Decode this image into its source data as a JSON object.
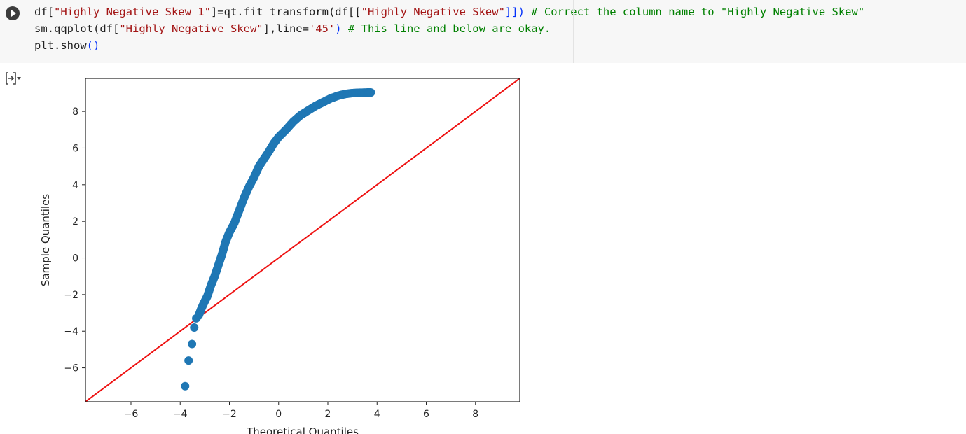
{
  "code_cell": {
    "lines": [
      [
        {
          "t": "df[",
          "k": "p"
        },
        {
          "t": "\"Highly Negative Skew_1\"",
          "k": "s"
        },
        {
          "t": "]=qt.fit_transform(df[[",
          "k": "p"
        },
        {
          "t": "\"Highly Negative Skew\"",
          "k": "s"
        },
        {
          "t": "]]) ",
          "k": "b"
        },
        {
          "t": "# Correct the column name to \"Highly Negative Skew\"",
          "k": "c"
        }
      ],
      [
        {
          "t": "sm.qqplot(df[",
          "k": "p"
        },
        {
          "t": "\"Highly Negative Skew\"",
          "k": "s"
        },
        {
          "t": "],line=",
          "k": "p"
        },
        {
          "t": "'45'",
          "k": "s"
        },
        {
          "t": ") ",
          "k": "b"
        },
        {
          "t": "# This line and below are okay.",
          "k": "c"
        }
      ],
      [
        {
          "t": "plt.show",
          "k": "p"
        },
        {
          "t": "()",
          "k": "b"
        }
      ]
    ]
  },
  "icons": {
    "run": "play-icon",
    "output_toggle": "collapse-output-icon"
  },
  "colors": {
    "points": "#1f77b4",
    "reference_line": "#ee1111",
    "code_string": "#a31515",
    "code_comment": "#008000",
    "code_paren": "#0431fa"
  },
  "chart_data": {
    "type": "scatter",
    "xlabel": "Theoretical Quantiles",
    "ylabel": "Sample Quantiles",
    "xlim": [
      -7.85,
      9.8
    ],
    "ylim": [
      -7.85,
      9.8
    ],
    "xticks": [
      -6,
      -4,
      -2,
      0,
      2,
      4,
      6,
      8
    ],
    "yticks": [
      -6,
      -4,
      -2,
      0,
      2,
      4,
      6,
      8
    ],
    "xtick_labels": [
      "−6",
      "−4",
      "−2",
      "0",
      "2",
      "4",
      "6",
      "8"
    ],
    "ytick_labels": [
      "−6",
      "−4",
      "−2",
      "0",
      "2",
      "4",
      "6",
      "8"
    ],
    "grid": false,
    "reference_line": {
      "type": "45-degree",
      "points": [
        [
          -7.85,
          -7.85
        ],
        [
          9.8,
          9.8
        ]
      ]
    },
    "series": [
      {
        "points": [
          [
            -3.8,
            -7.0
          ],
          [
            -3.66,
            -5.6
          ],
          [
            -3.52,
            -4.7
          ],
          [
            -3.43,
            -3.8
          ],
          [
            -3.35,
            -3.3
          ],
          [
            -3.25,
            -3.15
          ],
          [
            -3.15,
            -2.8
          ],
          [
            -3.05,
            -2.5
          ],
          [
            -2.9,
            -2.1
          ],
          [
            -2.75,
            -1.5
          ],
          [
            -2.6,
            -1.0
          ],
          [
            -2.45,
            -0.4
          ],
          [
            -2.3,
            0.2
          ],
          [
            -2.15,
            0.9
          ],
          [
            -2.0,
            1.4
          ],
          [
            -1.8,
            1.9
          ],
          [
            -1.6,
            2.6
          ],
          [
            -1.4,
            3.3
          ],
          [
            -1.2,
            3.9
          ],
          [
            -1.0,
            4.4
          ],
          [
            -0.8,
            5.0
          ],
          [
            -0.6,
            5.4
          ],
          [
            -0.4,
            5.8
          ],
          [
            -0.2,
            6.25
          ],
          [
            0.0,
            6.6
          ],
          [
            0.3,
            7.0
          ],
          [
            0.6,
            7.45
          ],
          [
            0.9,
            7.8
          ],
          [
            1.2,
            8.05
          ],
          [
            1.5,
            8.3
          ],
          [
            1.8,
            8.5
          ],
          [
            2.1,
            8.7
          ],
          [
            2.4,
            8.85
          ],
          [
            2.7,
            8.95
          ],
          [
            3.0,
            9.0
          ],
          [
            3.3,
            9.02
          ],
          [
            3.6,
            9.03
          ],
          [
            3.75,
            9.03
          ]
        ]
      }
    ]
  }
}
